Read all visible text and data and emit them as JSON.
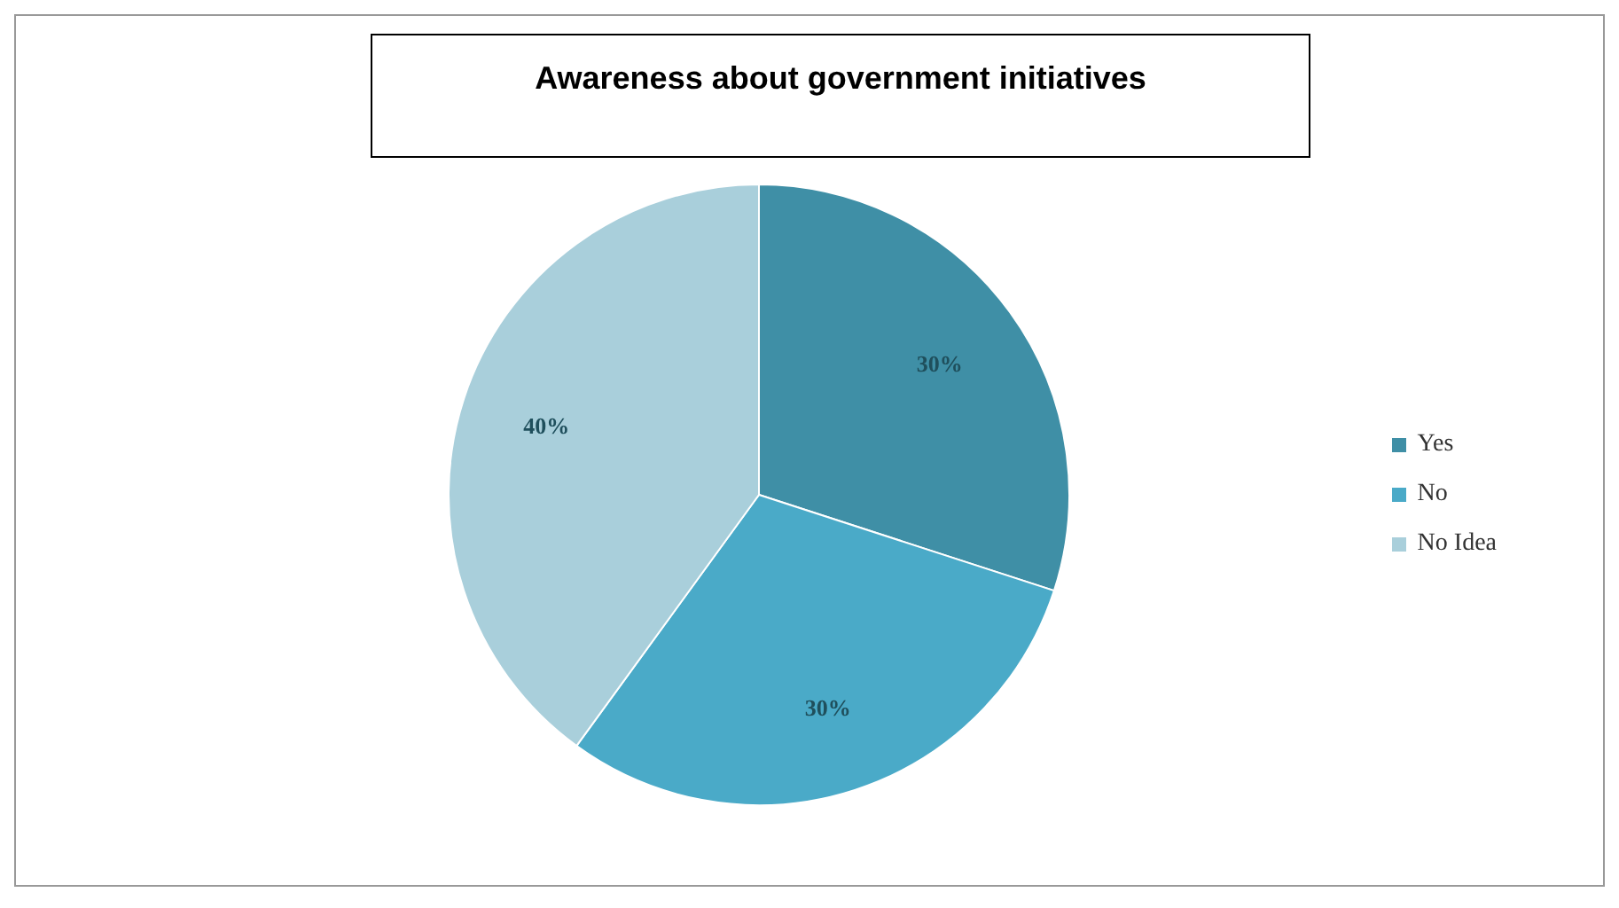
{
  "chart_data": {
    "type": "pie",
    "title": "Awareness about government initiatives",
    "categories": [
      "Yes",
      "No",
      "No Idea"
    ],
    "values": [
      30,
      30,
      40
    ],
    "colors": [
      "#3f8fa6",
      "#4aaac8",
      "#a9cfdb"
    ],
    "value_labels": [
      "30%",
      "30%",
      "40%"
    ],
    "legend": "right"
  }
}
